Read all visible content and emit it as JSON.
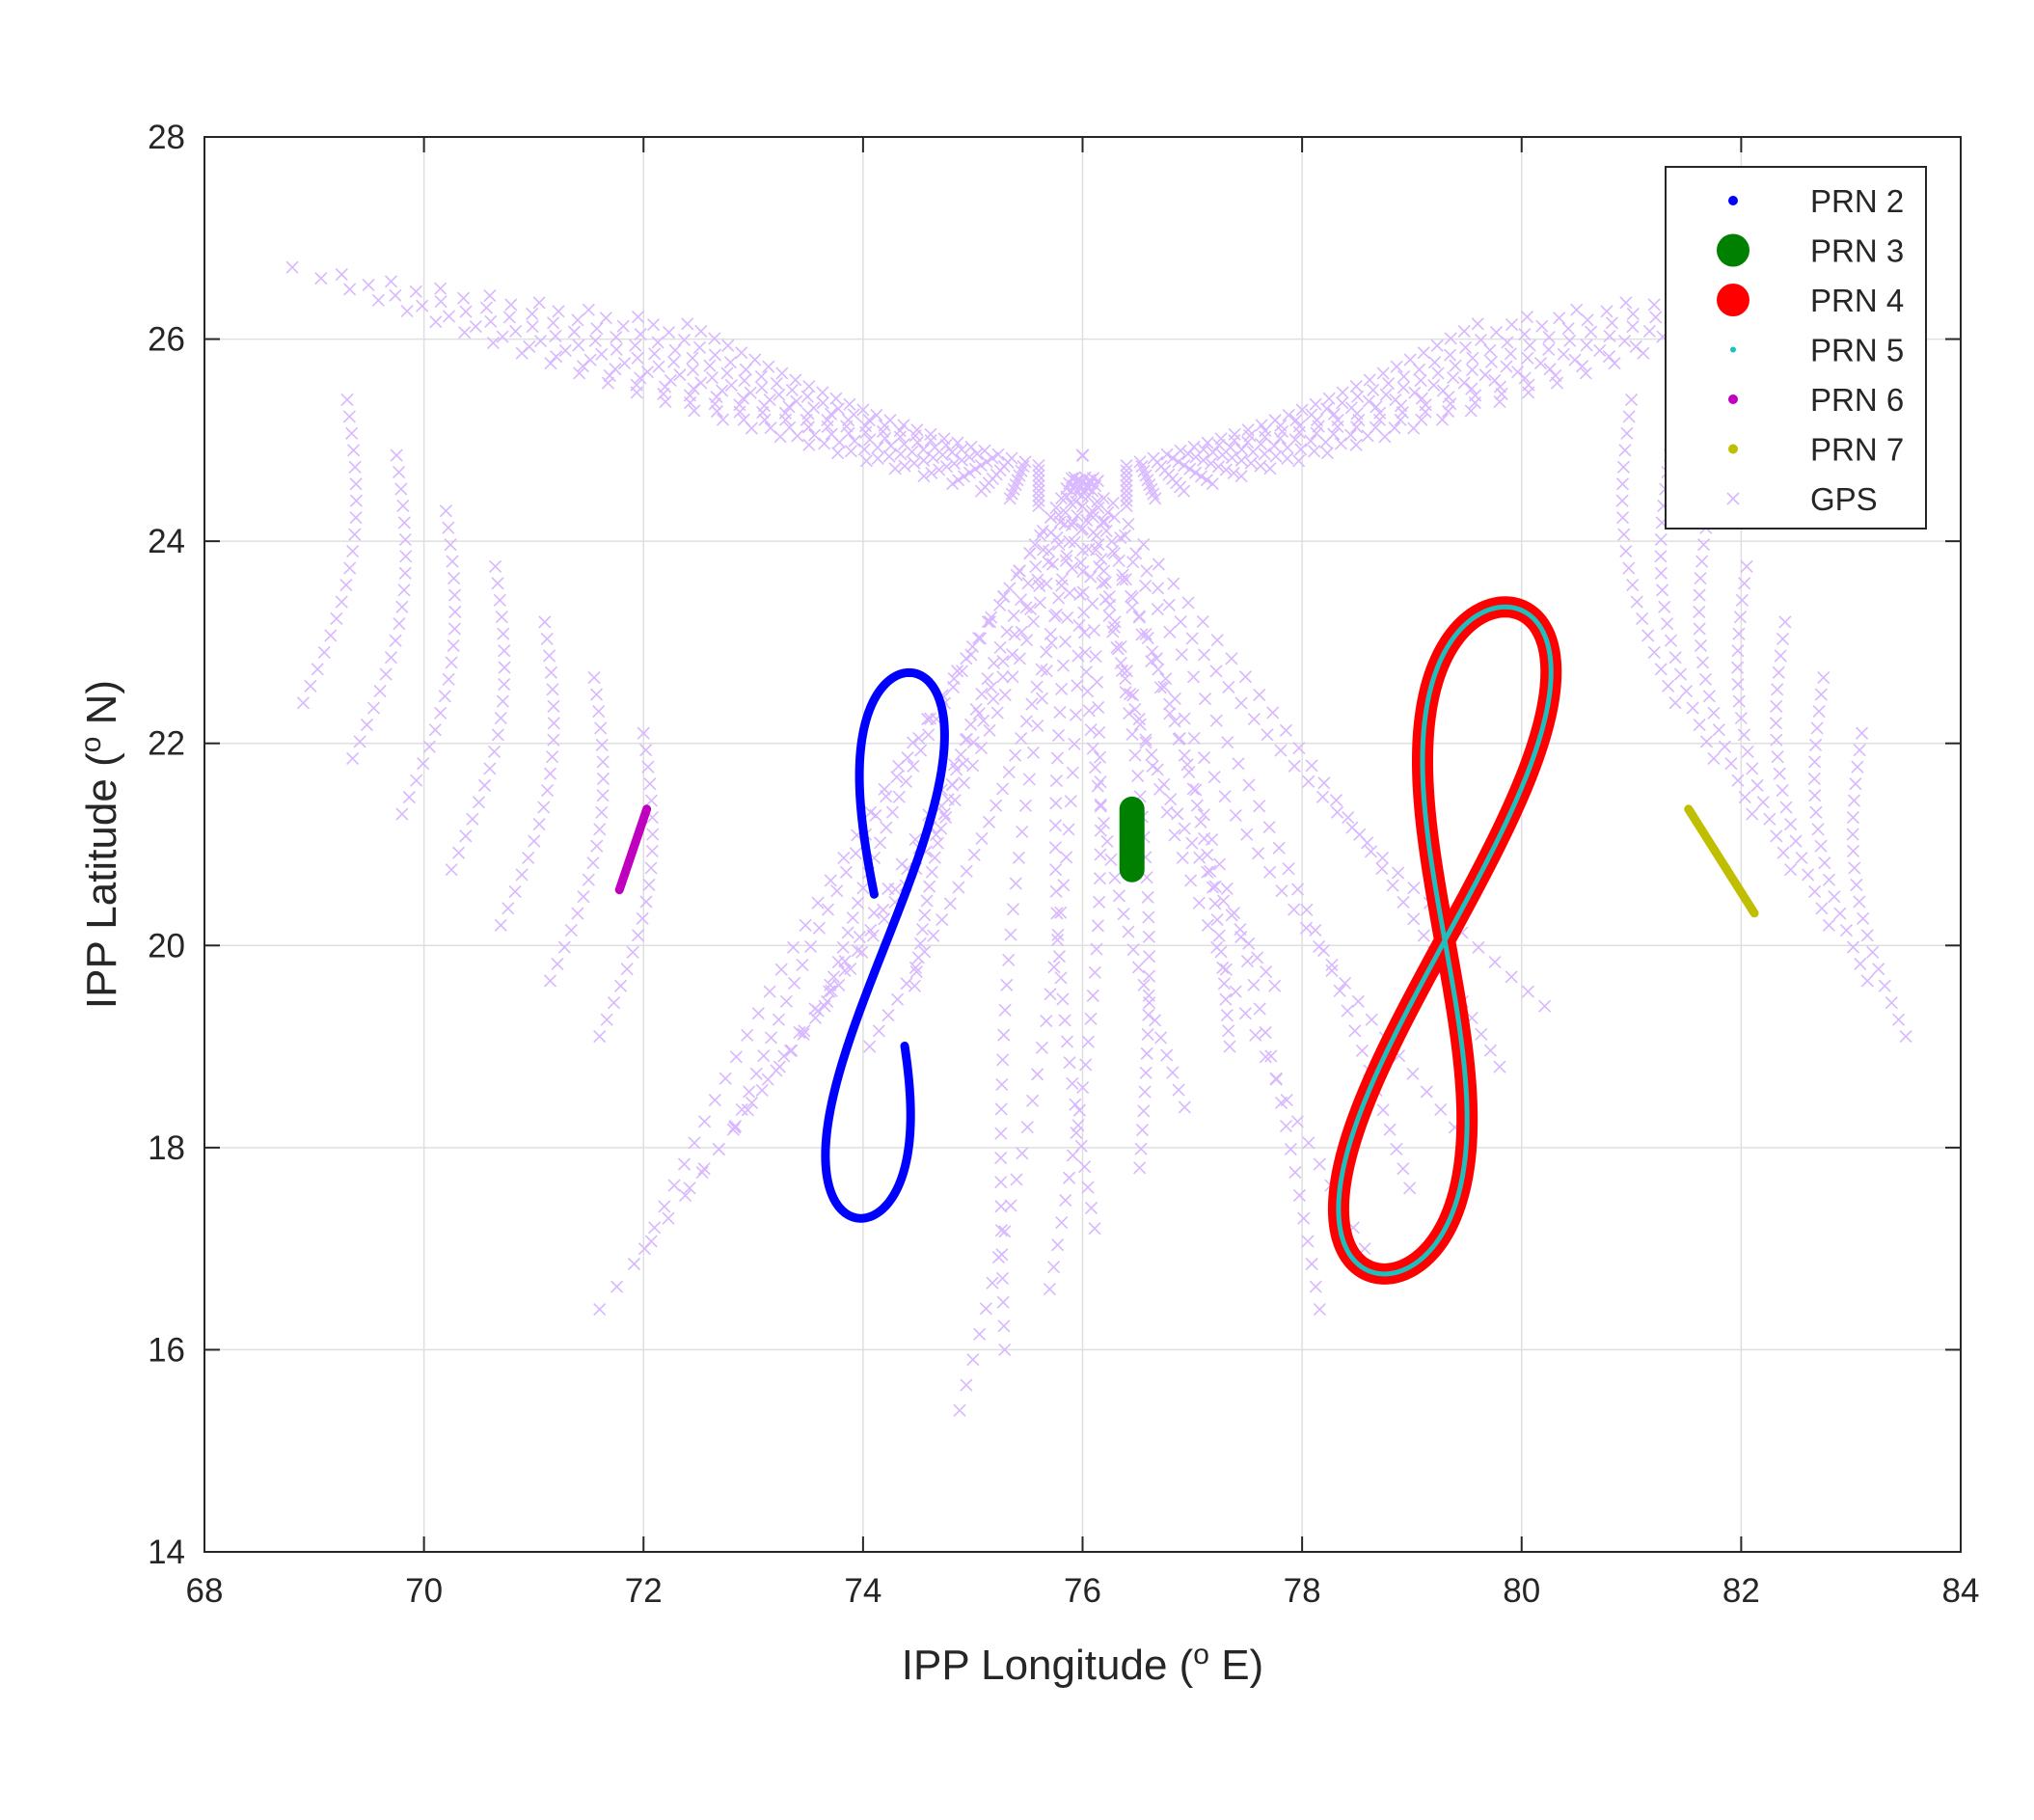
{
  "chart_data": {
    "type": "scatter",
    "title": "",
    "xlabel": "IPP Longitude (",
    "xlabel_sup": "o",
    "xlabel_unit": " E)",
    "ylabel": "IPP Latitude (",
    "ylabel_sup": "o",
    "ylabel_unit": " N)",
    "xlim": [
      68,
      84
    ],
    "ylim": [
      14,
      28
    ],
    "xticks": [
      68,
      70,
      72,
      74,
      76,
      78,
      80,
      82,
      84
    ],
    "yticks": [
      14,
      16,
      18,
      20,
      22,
      24,
      26,
      28
    ],
    "grid": true,
    "legend_position": "top-right",
    "series": [
      {
        "name": "PRN 2",
        "color": "#0000ff",
        "marker": "dot",
        "kind": "figure8",
        "center": [
          74.2,
          20.0
        ],
        "ax": 0.38,
        "ay": 2.7,
        "tilt": 0.8,
        "open_top": true
      },
      {
        "name": "PRN 3",
        "color": "#008000",
        "marker": "big-dot",
        "kind": "blob",
        "center": [
          76.45,
          21.05
        ],
        "ax": 0.06,
        "ay": 0.3,
        "tilt": 0,
        "open_top": false
      },
      {
        "name": "PRN 4",
        "color": "#ff0000",
        "marker": "big-dot",
        "kind": "figure8",
        "center": [
          79.3,
          20.05
        ],
        "ax": 0.55,
        "ay": 3.3,
        "tilt": 2.0,
        "open_top": false
      },
      {
        "name": "PRN 5",
        "color": "#1fbfbf",
        "marker": "small-dot",
        "kind": "figure8",
        "center": [
          79.3,
          20.05
        ],
        "ax": 0.55,
        "ay": 3.3,
        "tilt": 2.0,
        "open_top": false
      },
      {
        "name": "PRN 6",
        "color": "#bf00bf",
        "marker": "dot",
        "kind": "segment",
        "x": [
          71.78,
          72.03
        ],
        "y": [
          20.55,
          21.35
        ]
      },
      {
        "name": "PRN 7",
        "color": "#bfbf00",
        "marker": "dot",
        "kind": "segment",
        "x": [
          81.52,
          82.12
        ],
        "y": [
          21.35,
          20.32
        ]
      },
      {
        "name": "GPS",
        "color": "#d8b8ff",
        "marker": "x",
        "kind": "tracks",
        "apex": [
          76.0,
          24.85
        ],
        "row_lats": [
          16.0,
          16.6,
          17.2,
          17.8,
          18.4,
          19.0,
          19.6,
          20.2
        ]
      }
    ]
  }
}
